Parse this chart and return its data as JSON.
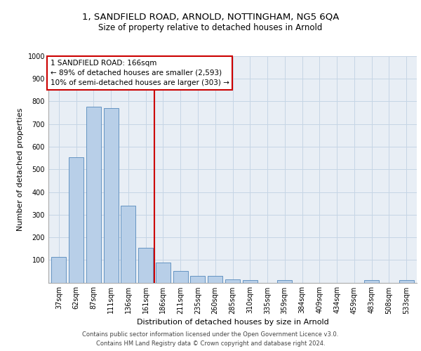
{
  "title1": "1, SANDFIELD ROAD, ARNOLD, NOTTINGHAM, NG5 6QA",
  "title2": "Size of property relative to detached houses in Arnold",
  "xlabel": "Distribution of detached houses by size in Arnold",
  "ylabel": "Number of detached properties",
  "footer1": "Contains HM Land Registry data © Crown copyright and database right 2024.",
  "footer2": "Contains public sector information licensed under the Open Government Licence v3.0.",
  "categories": [
    "37sqm",
    "62sqm",
    "87sqm",
    "111sqm",
    "136sqm",
    "161sqm",
    "186sqm",
    "211sqm",
    "235sqm",
    "260sqm",
    "285sqm",
    "310sqm",
    "335sqm",
    "359sqm",
    "384sqm",
    "409sqm",
    "434sqm",
    "459sqm",
    "483sqm",
    "508sqm",
    "533sqm"
  ],
  "values": [
    113,
    553,
    778,
    770,
    340,
    155,
    88,
    50,
    30,
    28,
    13,
    10,
    0,
    10,
    0,
    0,
    0,
    0,
    10,
    0,
    10
  ],
  "bar_color": "#b8cfe8",
  "bar_edge_color": "#5588bb",
  "grid_color": "#c5d5e5",
  "bg_color": "#e8eef5",
  "vline_color": "#cc0000",
  "vline_pos": 5.5,
  "annotation_line1": "1 SANDFIELD ROAD: 166sqm",
  "annotation_line2": "← 89% of detached houses are smaller (2,593)",
  "annotation_line3": "10% of semi-detached houses are larger (303) →",
  "ylim": [
    0,
    1000
  ],
  "yticks": [
    0,
    100,
    200,
    300,
    400,
    500,
    600,
    700,
    800,
    900,
    1000
  ],
  "title1_fontsize": 9.5,
  "title2_fontsize": 8.5,
  "ylabel_fontsize": 8,
  "xlabel_fontsize": 8,
  "tick_fontsize": 7,
  "annot_fontsize": 7.5,
  "footer_fontsize": 6.0
}
